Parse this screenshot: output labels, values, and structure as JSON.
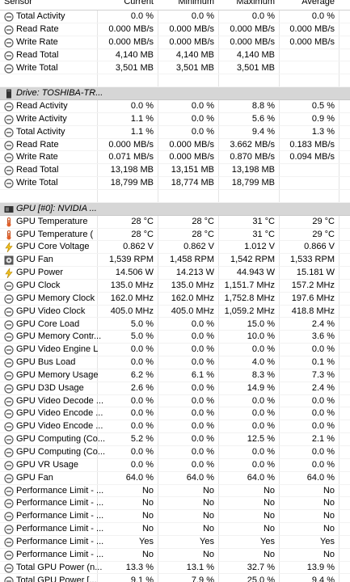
{
  "header": [
    "Sensor",
    "Current",
    "Minimum",
    "Maximum",
    "Average"
  ],
  "rows": [
    {
      "icon": "sensor",
      "label": "Total Activity",
      "values": [
        "0.0 %",
        "0.0 %",
        "0.0 %",
        "0.0 %"
      ]
    },
    {
      "icon": "sensor",
      "label": "Read Rate",
      "values": [
        "0.000 MB/s",
        "0.000 MB/s",
        "0.000 MB/s",
        "0.000 MB/s"
      ]
    },
    {
      "icon": "sensor",
      "label": "Write Rate",
      "values": [
        "0.000 MB/s",
        "0.000 MB/s",
        "0.000 MB/s",
        "0.000 MB/s"
      ]
    },
    {
      "icon": "sensor",
      "label": "Read Total",
      "values": [
        "4,140 MB",
        "4,140 MB",
        "4,140 MB"
      ]
    },
    {
      "icon": "sensor",
      "label": "Write Total",
      "values": [
        "3,501 MB",
        "3,501 MB",
        "3,501 MB"
      ]
    },
    null,
    {
      "icon": "drive",
      "group": "Drive: TOSHIBA-TR..."
    },
    {
      "icon": "sensor",
      "label": "Read Activity",
      "values": [
        "0.0 %",
        "0.0 %",
        "8.8 %",
        "0.5 %"
      ]
    },
    {
      "icon": "sensor",
      "label": "Write Activity",
      "values": [
        "1.1 %",
        "0.0 %",
        "5.6 %",
        "0.9 %"
      ]
    },
    {
      "icon": "sensor",
      "label": "Total Activity",
      "values": [
        "1.1 %",
        "0.0 %",
        "9.4 %",
        "1.3 %"
      ]
    },
    {
      "icon": "sensor",
      "label": "Read Rate",
      "values": [
        "0.000 MB/s",
        "0.000 MB/s",
        "3.662 MB/s",
        "0.183 MB/s"
      ]
    },
    {
      "icon": "sensor",
      "label": "Write Rate",
      "values": [
        "0.071 MB/s",
        "0.000 MB/s",
        "0.870 MB/s",
        "0.094 MB/s"
      ]
    },
    {
      "icon": "sensor",
      "label": "Read Total",
      "values": [
        "13,198 MB",
        "13,151 MB",
        "13,198 MB"
      ]
    },
    {
      "icon": "sensor",
      "label": "Write Total",
      "values": [
        "18,799 MB",
        "18,774 MB",
        "18,799 MB"
      ]
    },
    null,
    {
      "icon": "gpu",
      "group": "GPU [#0]: NVIDIA ..."
    },
    {
      "icon": "temp",
      "label": "GPU Temperature",
      "values": [
        "28 °C",
        "28 °C",
        "31 °C",
        "29 °C"
      ]
    },
    {
      "icon": "temp",
      "label": "GPU Temperature (",
      "values": [
        "28 °C",
        "28 °C",
        "31 °C",
        "29 °C"
      ]
    },
    {
      "icon": "volt",
      "label": "GPU Core Voltage",
      "values": [
        "0.862 V",
        "0.862 V",
        "1.012 V",
        "0.866 V"
      ]
    },
    {
      "icon": "fan",
      "label": "GPU Fan",
      "values": [
        "1,539 RPM",
        "1,458 RPM",
        "1,542 RPM",
        "1,533 RPM"
      ]
    },
    {
      "icon": "volt",
      "label": "GPU Power",
      "values": [
        "14.506 W",
        "14.213 W",
        "44.943 W",
        "15.181 W"
      ]
    },
    {
      "icon": "sensor",
      "label": "GPU Clock",
      "values": [
        "135.0 MHz",
        "135.0 MHz",
        "1,151.7 MHz",
        "157.2 MHz"
      ]
    },
    {
      "icon": "sensor",
      "label": "GPU Memory Clock",
      "values": [
        "162.0 MHz",
        "162.0 MHz",
        "1,752.8 MHz",
        "197.6 MHz"
      ]
    },
    {
      "icon": "sensor",
      "label": "GPU Video Clock",
      "values": [
        "405.0 MHz",
        "405.0 MHz",
        "1,059.2 MHz",
        "418.8 MHz"
      ]
    },
    {
      "icon": "sensor",
      "label": "GPU Core Load",
      "values": [
        "5.0 %",
        "0.0 %",
        "15.0 %",
        "2.4 %"
      ]
    },
    {
      "icon": "sensor",
      "label": "GPU Memory Contr...",
      "values": [
        "5.0 %",
        "0.0 %",
        "10.0 %",
        "3.6 %"
      ]
    },
    {
      "icon": "sensor",
      "label": "GPU Video Engine L",
      "values": [
        "0.0 %",
        "0.0 %",
        "0.0 %",
        "0.0 %"
      ]
    },
    {
      "icon": "sensor",
      "label": "GPU Bus Load",
      "values": [
        "0.0 %",
        "0.0 %",
        "4.0 %",
        "0.1 %"
      ]
    },
    {
      "icon": "sensor",
      "label": "GPU Memory Usage",
      "values": [
        "6.2 %",
        "6.1 %",
        "8.3 %",
        "7.3 %"
      ]
    },
    {
      "icon": "sensor",
      "label": "GPU D3D Usage",
      "values": [
        "2.6 %",
        "0.0 %",
        "14.9 %",
        "2.4 %"
      ]
    },
    {
      "icon": "sensor",
      "label": "GPU Video Decode ...",
      "values": [
        "0.0 %",
        "0.0 %",
        "0.0 %",
        "0.0 %"
      ]
    },
    {
      "icon": "sensor",
      "label": "GPU Video Encode ...",
      "values": [
        "0.0 %",
        "0.0 %",
        "0.0 %",
        "0.0 %"
      ]
    },
    {
      "icon": "sensor",
      "label": "GPU Video Encode ...",
      "values": [
        "0.0 %",
        "0.0 %",
        "0.0 %",
        "0.0 %"
      ]
    },
    {
      "icon": "sensor",
      "label": "GPU Computing (Co...",
      "values": [
        "5.2 %",
        "0.0 %",
        "12.5 %",
        "2.1 %"
      ]
    },
    {
      "icon": "sensor",
      "label": "GPU Computing (Co...",
      "values": [
        "0.0 %",
        "0.0 %",
        "0.0 %",
        "0.0 %"
      ]
    },
    {
      "icon": "sensor",
      "label": "GPU VR Usage",
      "values": [
        "0.0 %",
        "0.0 %",
        "0.0 %",
        "0.0 %"
      ]
    },
    {
      "icon": "sensor",
      "label": "GPU Fan",
      "values": [
        "64.0 %",
        "64.0 %",
        "64.0 %",
        "64.0 %"
      ]
    },
    {
      "icon": "sensor",
      "label": "Performance Limit - ...",
      "values": [
        "No",
        "No",
        "No",
        "No"
      ]
    },
    {
      "icon": "sensor",
      "label": "Performance Limit - ...",
      "values": [
        "No",
        "No",
        "No",
        "No"
      ]
    },
    {
      "icon": "sensor",
      "label": "Performance Limit - ...",
      "values": [
        "No",
        "No",
        "No",
        "No"
      ]
    },
    {
      "icon": "sensor",
      "label": "Performance Limit - ...",
      "values": [
        "No",
        "No",
        "No",
        "No"
      ]
    },
    {
      "icon": "sensor",
      "label": "Performance Limit - ...",
      "values": [
        "Yes",
        "Yes",
        "Yes",
        "Yes"
      ]
    },
    {
      "icon": "sensor",
      "label": "Performance Limit - ...",
      "values": [
        "No",
        "No",
        "No",
        "No"
      ]
    },
    {
      "icon": "sensor",
      "label": "Total GPU Power (n...",
      "values": [
        "13.3 %",
        "13.1 %",
        "32.7 %",
        "13.9 %"
      ]
    },
    {
      "icon": "sensor",
      "label": "Total GPU Power [...",
      "values": [
        "9.1 %",
        "7.9 %",
        "25.0 %",
        "9.4 %"
      ]
    }
  ]
}
